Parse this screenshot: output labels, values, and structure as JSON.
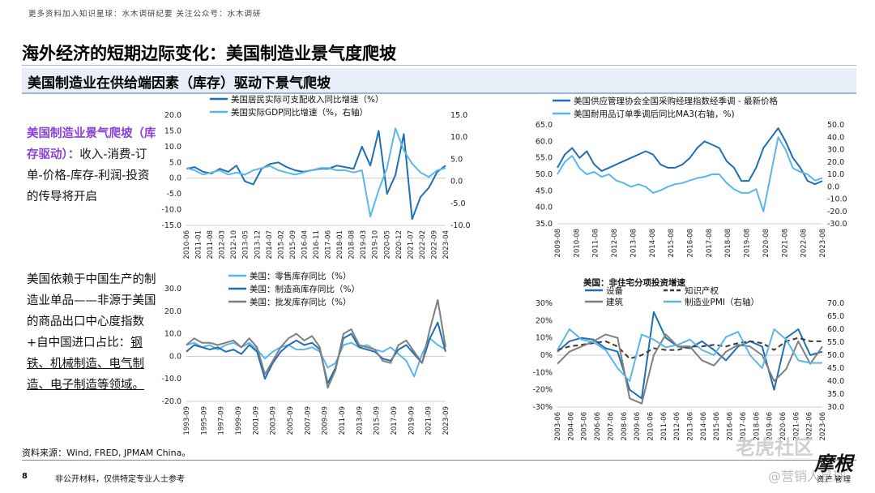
{
  "header": {
    "note": "更多资料加入知识星球：水木调研纪要    关注公众号：水木调研"
  },
  "title": "海外经济的短期边际变化：美国制造业景气度爬坡",
  "subtitle": "美国制造业在供给端因素（库存）驱动下景气爬坡",
  "left_text": {
    "para1_purple": "美国制造业景气爬坡（库存驱动）：",
    "para1_rest": "收入-消费-订单-价格-库存-利润-投资的传导将开启",
    "para2_pre": "美国依赖于中国生产的制造业单品——非源于美国的商品出口中心度指数+自中国进口占比：",
    "para2_ul": "钢铁、机械制造、电气制造、电子制造等领域。"
  },
  "footer": {
    "source": "资料来源：Wind, FRED, JPMAM China。",
    "page": "8",
    "disclaimer": "非公开材料，仅供特定专业人士参考"
  },
  "watermark": {
    "site": "老虎社区",
    "user": "@营销人星球",
    "logo": "摩根",
    "logo_sub": "资产管理"
  },
  "colors": {
    "dark_blue": "#1f6fb5",
    "light_blue": "#5bb6ea",
    "gray": "#7f7f7f",
    "dashed": "#3a3a3a"
  },
  "chart_data": [
    {
      "type": "line",
      "legend": [
        "美国居民实际可支配收入同比增速（%）",
        "美国实际GDP同比增速（%，右轴）"
      ],
      "x_ticks": [
        "2010-06",
        "2011-01",
        "2011-08",
        "2012-03",
        "2012-10",
        "2013-05",
        "2013-12",
        "2014-07",
        "2015-02",
        "2015-09",
        "2016-04",
        "2016-11",
        "2017-06",
        "2018-01",
        "2018-08",
        "2019-03",
        "2019-10",
        "2020-05",
        "2020-12",
        "2021-07",
        "2022-02",
        "2022-09",
        "2023-04"
      ],
      "ylim": [
        -15,
        20
      ],
      "y_ticks": [
        "20.0",
        "15.0",
        "10.0",
        "5.0",
        "0.0",
        "-5.0",
        "-10.0",
        "-15.0"
      ],
      "y2lim": [
        -10,
        15
      ],
      "y2_ticks": [
        "15.0",
        "10.0",
        "5.0",
        "0.0",
        "-5.0",
        "-10.0"
      ],
      "series": [
        {
          "name": "美国居民实际可支配收入同比增速（%）",
          "axis": "left",
          "color": "#1f6fb5",
          "values": [
            3,
            3.5,
            2,
            1.5,
            3,
            2,
            4,
            -1,
            -2,
            3,
            4.5,
            5,
            3.5,
            2.5,
            2,
            2.5,
            3,
            3,
            4,
            3.5,
            3,
            10,
            4,
            15,
            -5,
            1,
            14,
            -13,
            -6,
            -3,
            2,
            4
          ]
        },
        {
          "name": "美国实际GDP同比增速（%，右轴）",
          "axis": "right",
          "color": "#5bb6ea",
          "values": [
            3,
            2.5,
            1.5,
            2,
            2.5,
            1.5,
            2,
            1.5,
            2.5,
            3,
            3.5,
            2.5,
            2,
            1.5,
            2,
            2.5,
            3,
            3,
            2.5,
            2.5,
            2,
            2.5,
            -8,
            -2,
            3,
            12,
            7,
            4,
            2,
            1,
            2.5,
            3
          ]
        }
      ]
    },
    {
      "type": "line",
      "legend": [
        "美国供应管理协会全国采购经理指数经季调 - 最新价格",
        "美国耐用品订单季调后同比MA3(右轴，%)"
      ],
      "x_ticks": [
        "2009-08",
        "2010-08",
        "2011-08",
        "2012-08",
        "2013-08",
        "2014-08",
        "2015-08",
        "2016-08",
        "2017-08",
        "2018-08",
        "2019-08",
        "2020-08",
        "2021-08",
        "2022-08",
        "2023-08"
      ],
      "ylim": [
        35,
        65
      ],
      "y_ticks": [
        "65.0",
        "60.0",
        "55.0",
        "50.0",
        "45.0",
        "40.0",
        "35.0"
      ],
      "y2lim": [
        -30,
        50
      ],
      "y2_ticks": [
        "50.0",
        "40.0",
        "30.0",
        "20.0",
        "10.0",
        "0.0",
        "-10.0",
        "-20.0",
        "-30.0"
      ],
      "series": [
        {
          "name": "美国供应管理协会全国采购经理指数经季调 - 最新价格",
          "axis": "left",
          "color": "#1f6fb5",
          "values": [
            52,
            56,
            58,
            55,
            57,
            53,
            51,
            52,
            53,
            54,
            55,
            56,
            57,
            56,
            53,
            52,
            52,
            53,
            55,
            58,
            60,
            59,
            58,
            54,
            52,
            48,
            48,
            52,
            58,
            61,
            64,
            60,
            55,
            52,
            48,
            47,
            48
          ]
        },
        {
          "name": "美国耐用品订单季调后同比MA3(右轴，%)",
          "axis": "right",
          "color": "#5bb6ea",
          "values": [
            10,
            20,
            25,
            15,
            10,
            12,
            8,
            10,
            5,
            3,
            0,
            2,
            0,
            -5,
            -3,
            0,
            2,
            3,
            5,
            7,
            8,
            10,
            10,
            3,
            -2,
            -5,
            -5,
            -2,
            -20,
            10,
            40,
            30,
            15,
            12,
            10,
            5,
            7
          ]
        }
      ]
    },
    {
      "type": "line",
      "legend": [
        "美国：零售库存同比（%）",
        "美国：制造商库存同比（%）",
        "美国：批发库存同比（%）"
      ],
      "x_ticks": [
        "1993-09",
        "1995-09",
        "1997-09",
        "1999-09",
        "2001-09",
        "2003-09",
        "2005-09",
        "2007-09",
        "2009-09",
        "2011-09",
        "2013-09",
        "2015-09",
        "2017-09",
        "2019-09",
        "2021-09",
        "2023-09"
      ],
      "ylim": [
        -20,
        30
      ],
      "y_ticks": [
        "30.0",
        "20.0",
        "10.0",
        "0.0",
        "-10.0",
        "-20.0"
      ],
      "series": [
        {
          "name": "美国：零售库存同比（%）",
          "color": "#5bb6ea",
          "values": [
            5,
            6,
            4,
            5,
            3,
            5,
            6,
            4,
            6,
            3,
            -1,
            2,
            4,
            5,
            3,
            3,
            4,
            2,
            -5,
            -3,
            5,
            6,
            4,
            5,
            3,
            2,
            4,
            1,
            -2,
            -9,
            1,
            8,
            5,
            3
          ]
        },
        {
          "name": "美国：制造商库存同比（%）",
          "color": "#1f6fb5",
          "values": [
            2,
            5,
            4,
            3,
            4,
            2,
            3,
            1,
            5,
            2,
            -10,
            -3,
            2,
            5,
            7,
            5,
            6,
            3,
            -12,
            -5,
            8,
            10,
            4,
            3,
            2,
            -1,
            -2,
            3,
            5,
            1,
            -3,
            8,
            15,
            2
          ]
        },
        {
          "name": "美国：批发库存同比（%）",
          "color": "#7f7f7f",
          "values": [
            5,
            8,
            6,
            6,
            5,
            6,
            7,
            4,
            8,
            4,
            -8,
            -2,
            4,
            8,
            10,
            7,
            9,
            4,
            -14,
            -6,
            10,
            12,
            5,
            4,
            3,
            -2,
            -3,
            5,
            7,
            2,
            -3,
            12,
            25,
            4
          ]
        }
      ]
    },
    {
      "type": "line",
      "title": "美国：非住宅分项投资增速",
      "legend": [
        "设备",
        "知识产权",
        "建筑",
        "制造业PMI（右轴）"
      ],
      "x_ticks": [
        "2003-06",
        "2004-06",
        "2005-06",
        "2006-06",
        "2007-06",
        "2008-06",
        "2009-06",
        "2010-06",
        "2011-06",
        "2012-06",
        "2013-06",
        "2014-06",
        "2015-06",
        "2016-06",
        "2017-06",
        "2018-06",
        "2019-06",
        "2020-06",
        "2021-06",
        "2022-06",
        "2023-06"
      ],
      "ylim": [
        -30,
        30
      ],
      "y_ticks": [
        "30%",
        "20%",
        "10%",
        "0%",
        "-10%",
        "-20%",
        "-30%"
      ],
      "y2lim": [
        30,
        70
      ],
      "y2_ticks": [
        "70.0",
        "65.0",
        "60.0",
        "55.0",
        "50.0",
        "45.0",
        "40.0",
        "35.0",
        "30.0"
      ],
      "series": [
        {
          "name": "设备",
          "color": "#1f6fb5",
          "values": [
            2,
            8,
            10,
            9,
            4,
            2,
            -20,
            -25,
            25,
            10,
            5,
            4,
            8,
            3,
            -3,
            5,
            8,
            5,
            -20,
            10,
            15,
            0,
            2
          ]
        },
        {
          "name": "知识产权",
          "color": "#3a3a3a",
          "dashed": true,
          "values": [
            3,
            5,
            6,
            7,
            8,
            5,
            -2,
            0,
            4,
            3,
            3,
            5,
            5,
            6,
            5,
            7,
            8,
            7,
            3,
            8,
            10,
            8,
            8
          ]
        },
        {
          "name": "建筑",
          "color": "#7f7f7f",
          "values": [
            -5,
            2,
            5,
            8,
            12,
            10,
            -25,
            -28,
            0,
            12,
            5,
            5,
            -3,
            -6,
            2,
            6,
            5,
            0,
            -15,
            -8,
            8,
            -5,
            5
          ]
        },
        {
          "name": "制造业PMI（右轴）",
          "axis": "right",
          "color": "#5bb6ea",
          "values": [
            52,
            60,
            56,
            55,
            52,
            45,
            40,
            58,
            56,
            53,
            54,
            56,
            52,
            50,
            57,
            59,
            50,
            45,
            60,
            56,
            48,
            47,
            47
          ]
        }
      ]
    }
  ]
}
